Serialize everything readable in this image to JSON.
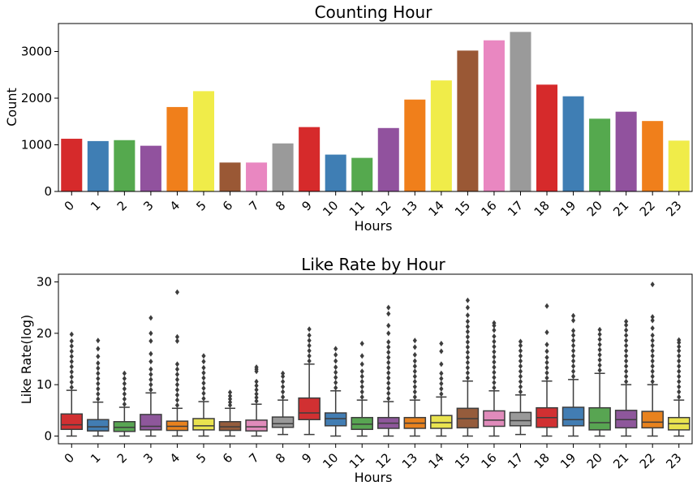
{
  "chart_data": [
    {
      "type": "bar",
      "title": "Counting Hour",
      "xlabel": "Hours",
      "ylabel": "Count",
      "ylim": [
        0,
        3600
      ],
      "yticks": [
        0,
        1000,
        2000,
        3000
      ],
      "grid": false,
      "categories": [
        "0",
        "1",
        "2",
        "3",
        "4",
        "5",
        "6",
        "7",
        "8",
        "9",
        "10",
        "11",
        "12",
        "13",
        "14",
        "15",
        "16",
        "17",
        "18",
        "19",
        "20",
        "21",
        "22",
        "23"
      ],
      "values": [
        1130,
        1080,
        1100,
        980,
        1810,
        2150,
        620,
        620,
        1030,
        1380,
        790,
        720,
        1360,
        1970,
        2380,
        3020,
        3240,
        3420,
        2290,
        2040,
        1560,
        1710,
        1510,
        1090
      ],
      "colors": [
        "#d62a2b",
        "#3f7eb4",
        "#55a94e",
        "#91529e",
        "#f07f1b",
        "#f0ec49",
        "#9a5835",
        "#e987c1",
        "#9a9a9a",
        "#d62a2b",
        "#3f7eb4",
        "#55a94e",
        "#91529e",
        "#f07f1b",
        "#f0ec49",
        "#9a5835",
        "#e987c1",
        "#9a9a9a",
        "#d62a2b",
        "#3f7eb4",
        "#55a94e",
        "#91529e",
        "#f07f1b",
        "#f0ec49"
      ]
    },
    {
      "type": "box",
      "title": "Like Rate by Hour",
      "xlabel": "Hours",
      "ylabel": "Like Rate(log)",
      "ylim": [
        -1.5,
        31.5
      ],
      "yticks": [
        0,
        10,
        20,
        30
      ],
      "grid": false,
      "categories": [
        "0",
        "1",
        "2",
        "3",
        "4",
        "5",
        "6",
        "7",
        "8",
        "9",
        "10",
        "11",
        "12",
        "13",
        "14",
        "15",
        "16",
        "17",
        "18",
        "19",
        "20",
        "21",
        "22",
        "23"
      ],
      "boxes": [
        {
          "min": 0,
          "q1": 1.3,
          "median": 2.2,
          "q3": 4.3,
          "max": 8.9,
          "outliers": [
            9.5,
            10.5,
            11.5,
            12.5,
            13.5,
            14.5,
            15.5,
            16.5,
            17.5,
            18.5,
            19.8
          ]
        },
        {
          "min": 0,
          "q1": 1.0,
          "median": 1.8,
          "q3": 3.2,
          "max": 6.6,
          "outliers": [
            7.2,
            8.2,
            9.2,
            10.2,
            11.2,
            12.2,
            13.2,
            14.2,
            15.5,
            17.0,
            18.6
          ]
        },
        {
          "min": 0,
          "q1": 0.9,
          "median": 1.7,
          "q3": 2.8,
          "max": 5.6,
          "outliers": [
            6.2,
            7.2,
            8.2,
            9.2,
            10.2,
            11.2,
            12.2
          ]
        },
        {
          "min": 0,
          "q1": 1.2,
          "median": 1.9,
          "q3": 4.2,
          "max": 8.4,
          "outliers": [
            9.0,
            10.0,
            11.0,
            12.0,
            13.0,
            14.5,
            16.0,
            18.5,
            20.0,
            23.0
          ]
        },
        {
          "min": 0,
          "q1": 1.1,
          "median": 1.9,
          "q3": 2.9,
          "max": 5.4,
          "outliers": [
            6.0,
            7.0,
            8.0,
            9.0,
            10.0,
            11.0,
            12.0,
            13.0,
            14.0,
            18.5,
            19.3,
            28.0
          ]
        },
        {
          "min": 0,
          "q1": 1.2,
          "median": 2.0,
          "q3": 3.4,
          "max": 6.7,
          "outliers": [
            7.3,
            8.3,
            9.3,
            10.3,
            11.3,
            12.3,
            13.3,
            14.5,
            15.6
          ]
        },
        {
          "min": 0,
          "q1": 1.1,
          "median": 1.8,
          "q3": 2.8,
          "max": 5.4,
          "outliers": [
            6.0,
            6.6,
            7.2,
            7.8,
            8.5
          ]
        },
        {
          "min": 0,
          "q1": 1.0,
          "median": 1.8,
          "q3": 3.1,
          "max": 6.2,
          "outliers": [
            6.8,
            7.5,
            8.2,
            9.0,
            9.8,
            10.6,
            12.6,
            13.0,
            13.4
          ]
        },
        {
          "min": 0.3,
          "q1": 1.7,
          "median": 2.4,
          "q3": 3.7,
          "max": 7.0,
          "outliers": [
            7.6,
            8.6,
            9.6,
            10.6,
            11.6,
            12.2
          ]
        },
        {
          "min": 0.3,
          "q1": 3.2,
          "median": 4.5,
          "q3": 7.4,
          "max": 14.0,
          "outliers": [
            14.6,
            15.6,
            16.6,
            17.6,
            18.6,
            19.6,
            20.8
          ]
        },
        {
          "min": 0,
          "q1": 2.0,
          "median": 3.4,
          "q3": 4.5,
          "max": 8.8,
          "outliers": [
            9.4,
            10.4,
            11.4,
            12.4,
            13.4,
            14.6,
            15.8,
            17.0
          ]
        },
        {
          "min": 0,
          "q1": 1.3,
          "median": 2.3,
          "q3": 3.6,
          "max": 7.0,
          "outliers": [
            7.6,
            8.6,
            9.6,
            10.6,
            11.6,
            12.6,
            14.0,
            15.6,
            18.0
          ]
        },
        {
          "min": 0,
          "q1": 1.5,
          "median": 2.5,
          "q3": 3.6,
          "max": 6.7,
          "outliers": [
            7.3,
            8.3,
            9.3,
            10.3,
            11.3,
            12.3,
            13.3,
            14.3,
            15.3,
            16.3,
            17.3,
            18.3,
            20.0,
            21.5,
            23.8,
            25.0
          ]
        },
        {
          "min": 0,
          "q1": 1.5,
          "median": 2.5,
          "q3": 3.6,
          "max": 7.0,
          "outliers": [
            7.6,
            8.6,
            9.6,
            10.6,
            11.6,
            12.6,
            13.6,
            14.6,
            15.8,
            17.3,
            18.6
          ]
        },
        {
          "min": 0,
          "q1": 1.5,
          "median": 2.6,
          "q3": 4.0,
          "max": 7.6,
          "outliers": [
            8.2,
            9.2,
            10.2,
            11.2,
            12.2,
            14.0,
            16.5,
            18.0
          ]
        },
        {
          "min": 0,
          "q1": 1.6,
          "median": 3.4,
          "q3": 5.4,
          "max": 10.7,
          "outliers": [
            11.3,
            12.3,
            13.3,
            14.3,
            15.3,
            16.3,
            17.3,
            18.3,
            19.3,
            20.3,
            21.3,
            22.3,
            23.5,
            25.0,
            26.4
          ]
        },
        {
          "min": 0,
          "q1": 1.9,
          "median": 3.1,
          "q3": 4.9,
          "max": 8.8,
          "outliers": [
            9.4,
            10.4,
            11.4,
            12.4,
            13.4,
            14.4,
            15.4,
            16.4,
            17.4,
            18.4,
            19.4,
            20.6,
            21.5,
            22.0
          ]
        },
        {
          "min": 0.3,
          "q1": 2.0,
          "median": 3.0,
          "q3": 4.6,
          "max": 8.0,
          "outliers": [
            8.6,
            9.6,
            10.6,
            11.6,
            12.6,
            13.6,
            14.6,
            15.6,
            16.6,
            17.6,
            18.4
          ]
        },
        {
          "min": 0,
          "q1": 1.7,
          "median": 3.6,
          "q3": 5.5,
          "max": 10.7,
          "outliers": [
            11.3,
            12.3,
            13.3,
            14.3,
            15.3,
            16.5,
            17.8,
            20.2,
            25.3
          ]
        },
        {
          "min": 0,
          "q1": 2.0,
          "median": 3.2,
          "q3": 5.6,
          "max": 11.0,
          "outliers": [
            11.6,
            12.6,
            13.6,
            14.6,
            15.6,
            16.6,
            17.6,
            18.6,
            19.6,
            20.5,
            22.5,
            23.4
          ]
        },
        {
          "min": 0,
          "q1": 1.2,
          "median": 2.6,
          "q3": 5.5,
          "max": 12.2,
          "outliers": [
            12.8,
            13.8,
            14.8,
            15.8,
            16.8,
            17.8,
            18.8,
            19.8,
            20.7
          ]
        },
        {
          "min": 0,
          "q1": 1.6,
          "median": 3.2,
          "q3": 5.0,
          "max": 10.0,
          "outliers": [
            10.6,
            11.6,
            12.6,
            13.6,
            14.6,
            15.6,
            16.6,
            17.6,
            18.6,
            19.6,
            20.6,
            21.6,
            22.3
          ]
        },
        {
          "min": 0,
          "q1": 1.6,
          "median": 2.7,
          "q3": 4.8,
          "max": 10.0,
          "outliers": [
            10.6,
            11.6,
            12.6,
            13.6,
            14.6,
            15.6,
            16.6,
            17.6,
            18.6,
            19.6,
            21.0,
            22.5,
            23.2,
            29.5
          ]
        },
        {
          "min": 0,
          "q1": 1.2,
          "median": 2.4,
          "q3": 3.6,
          "max": 7.0,
          "outliers": [
            7.6,
            8.6,
            9.6,
            10.6,
            11.6,
            12.6,
            13.6,
            14.6,
            15.6,
            16.6,
            17.4,
            18.2,
            18.7
          ]
        }
      ],
      "colors": [
        "#d13032",
        "#427db3",
        "#58a552",
        "#8e579b",
        "#e8821e",
        "#e9e34f",
        "#955c3c",
        "#e08bbb",
        "#999999",
        "#d13032",
        "#427db3",
        "#58a552",
        "#8e579b",
        "#e8821e",
        "#e9e34f",
        "#955c3c",
        "#e08bbb",
        "#999999",
        "#d13032",
        "#427db3",
        "#58a552",
        "#8e579b",
        "#e8821e",
        "#e9e34f"
      ]
    }
  ]
}
